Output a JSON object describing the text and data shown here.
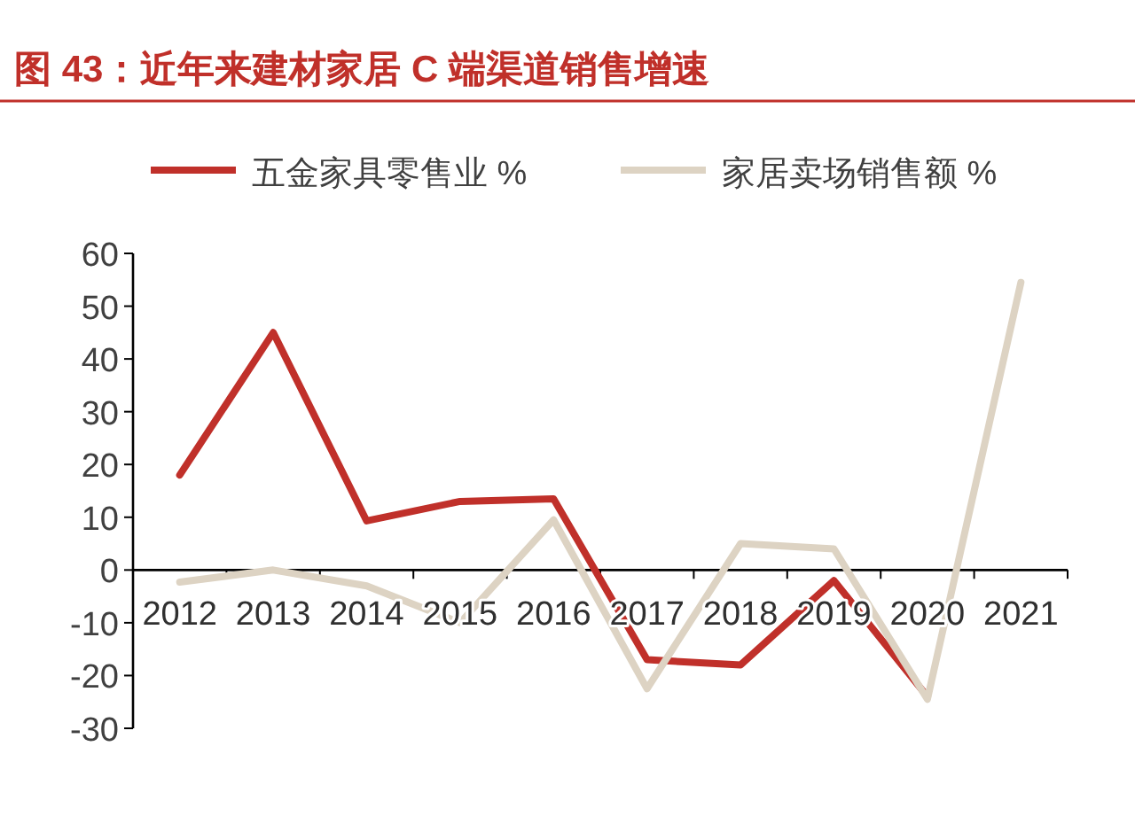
{
  "chart_data": {
    "type": "line",
    "title": "图 43：近年来建材家居 C 端渠道销售增速",
    "categories": [
      "2012",
      "2013",
      "2014",
      "2015",
      "2016",
      "2017",
      "2018",
      "2019",
      "2020",
      "2021"
    ],
    "series": [
      {
        "name": "五金家具零售业 %",
        "color": "#c0302a",
        "values": [
          18,
          45,
          9.3,
          13,
          13.5,
          -17,
          -18,
          -2,
          -24,
          null
        ]
      },
      {
        "name": "家居卖场销售额 %",
        "color": "#ddd3c3",
        "values": [
          -2.3,
          0,
          -3,
          -10,
          9.5,
          -22.5,
          5,
          4,
          -24.5,
          54.5
        ]
      }
    ],
    "ylim": [
      -30,
      60
    ],
    "yticks": [
      -30,
      -20,
      -10,
      0,
      10,
      20,
      30,
      40,
      50,
      60
    ],
    "grid": false,
    "legend": "top",
    "marker": "none",
    "line_style": "solid"
  }
}
